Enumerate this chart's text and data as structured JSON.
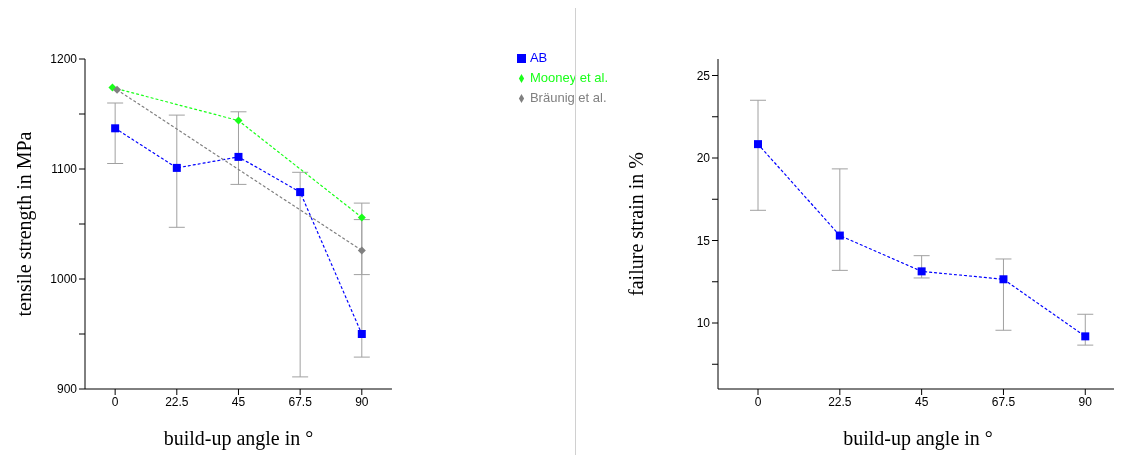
{
  "chart_data": [
    {
      "type": "line",
      "xlabel": "build-up angle in °",
      "ylabel": "tensile strength in MPa",
      "xlim": [
        -11,
        101
      ],
      "xticks": [
        0,
        22.5,
        45,
        67.5,
        90
      ],
      "ylim": [
        900,
        1200
      ],
      "yticks": [
        900,
        {
          "value": 950,
          "label": null
        },
        1000,
        {
          "value": 1050,
          "label": null
        },
        1100,
        {
          "value": 1150,
          "label": null
        },
        1200
      ],
      "legend": "top right",
      "line_style": "dotted",
      "series": [
        {
          "name": "AB",
          "color": "#0000ff",
          "marker": "square",
          "x": [
            0,
            22.5,
            45,
            67.5,
            90
          ],
          "values": [
            1137,
            1101,
            1111,
            1079,
            950
          ],
          "errors": [
            [
              1105,
              1160
            ],
            [
              1047,
              1149
            ],
            [
              1086,
              1152
            ],
            [
              911,
              1097
            ],
            [
              929,
              1054
            ]
          ]
        },
        {
          "name": "Mooney et al.",
          "color": "#19ff19",
          "marker": "diamond",
          "x": [
            -1,
            45,
            90
          ],
          "values": [
            1174,
            1144,
            1056
          ]
        },
        {
          "name": "Bräunig et al.",
          "color": "#808080",
          "marker": "diamond",
          "x": [
            0.7,
            90
          ],
          "values": [
            1172,
            1026
          ],
          "errors": [
            null,
            [
              1004,
              1069
            ]
          ]
        }
      ]
    },
    {
      "type": "line",
      "xlabel": "build-up angle in °",
      "ylabel": "failure strain in %",
      "xlim": [
        -11,
        99
      ],
      "xticks": [
        0,
        22.5,
        45,
        67.5,
        90
      ],
      "ylim": [
        6,
        26
      ],
      "yticks": [
        {
          "value": 7.5,
          "label": null
        },
        10,
        {
          "value": 12.5,
          "label": null
        },
        15,
        {
          "value": 17.5,
          "label": null
        },
        20,
        {
          "value": 22.5,
          "label": null
        },
        25
      ],
      "legend": false,
      "line_style": "dotted",
      "series": [
        {
          "color": "#0000ff",
          "marker": "square",
          "x": [
            0,
            22.5,
            45,
            67.5,
            90
          ],
          "values": [
            20.84,
            15.3,
            13.13,
            12.65,
            9.19
          ],
          "errors": [
            [
              16.83,
              23.5
            ],
            [
              13.19,
              19.34
            ],
            [
              12.73,
              14.08
            ],
            [
              9.56,
              13.88
            ],
            [
              8.66,
              10.53
            ]
          ]
        }
      ]
    }
  ]
}
